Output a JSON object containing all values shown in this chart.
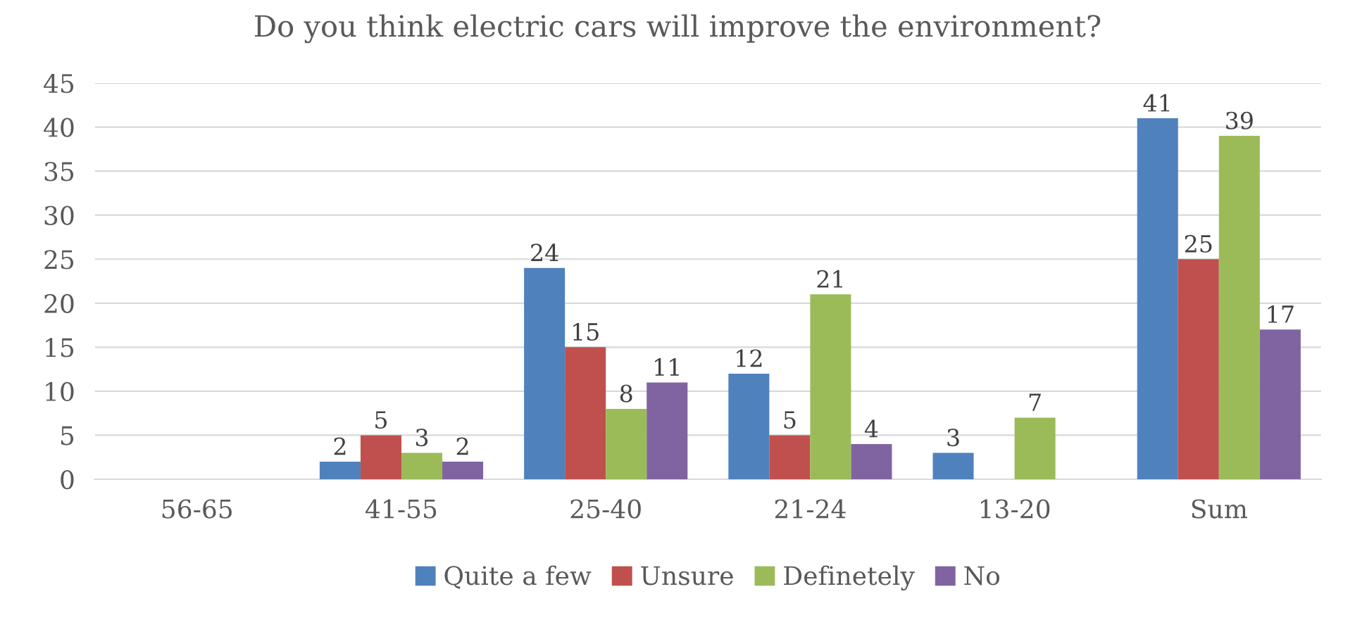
{
  "chart_data": {
    "type": "bar",
    "title": "Do you think electric cars will improve the environment?",
    "categories": [
      "56-65",
      "41-55",
      "25-40",
      "21-24",
      "13-20",
      "Sum"
    ],
    "series": [
      {
        "name": "Quite a few",
        "color": "#4f81bd",
        "values": [
          null,
          2,
          24,
          12,
          3,
          41
        ]
      },
      {
        "name": "Unsure",
        "color": "#c0504d",
        "values": [
          null,
          5,
          15,
          5,
          null,
          25
        ]
      },
      {
        "name": "Definetely",
        "color": "#9bbb59",
        "values": [
          null,
          3,
          8,
          21,
          7,
          39
        ]
      },
      {
        "name": "No",
        "color": "#8064a2",
        "values": [
          null,
          2,
          11,
          4,
          null,
          17
        ]
      }
    ],
    "ylim": [
      0,
      45
    ],
    "yticks": [
      0,
      5,
      10,
      15,
      20,
      25,
      30,
      35,
      40,
      45
    ],
    "grid": "y",
    "legend": "bottom",
    "data_labels": true
  }
}
